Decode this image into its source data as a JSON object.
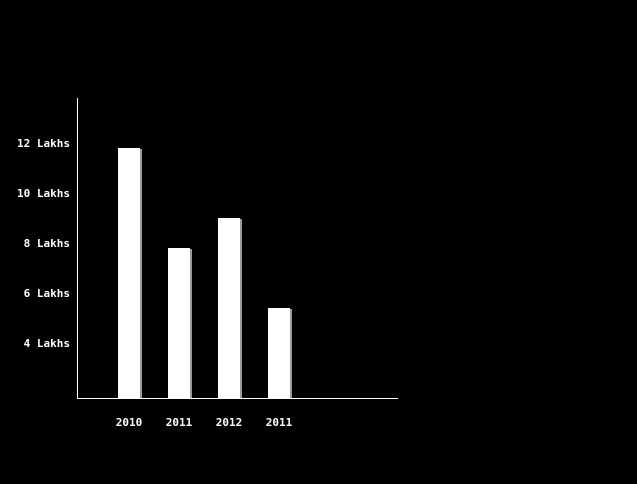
{
  "colors": {
    "background": "#000000",
    "bar": "#ffffff",
    "axis": "#ffffff",
    "text": "#ffffff"
  },
  "chart_data": {
    "type": "bar",
    "title": "",
    "xlabel": "",
    "ylabel": "",
    "categories": [
      "2010",
      "2011",
      "2012",
      "2011"
    ],
    "values": [
      11.8,
      7.8,
      9.0,
      5.4
    ],
    "y_ticks": [
      {
        "value": 12,
        "label": "12 Lakhs"
      },
      {
        "value": 10,
        "label": "10 Lakhs"
      },
      {
        "value": 8,
        "label": "8 Lakhs"
      },
      {
        "value": 6,
        "label": "6 Lakhs"
      },
      {
        "value": 4,
        "label": "4 Lakhs"
      }
    ],
    "ylim": [
      1.8,
      13.8
    ],
    "grid": false,
    "legend": "none"
  }
}
